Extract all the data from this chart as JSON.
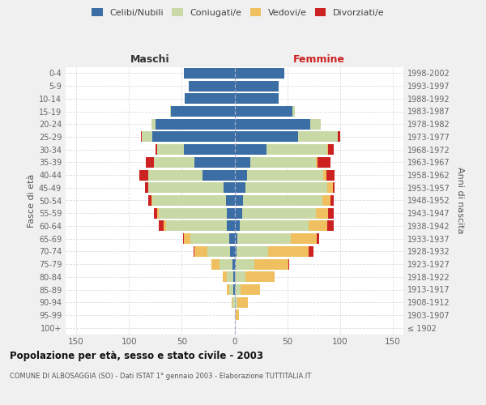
{
  "age_groups": [
    "100+",
    "95-99",
    "90-94",
    "85-89",
    "80-84",
    "75-79",
    "70-74",
    "65-69",
    "60-64",
    "55-59",
    "50-54",
    "45-49",
    "40-44",
    "35-39",
    "30-34",
    "25-29",
    "20-24",
    "15-19",
    "10-14",
    "5-9",
    "0-4"
  ],
  "birth_years": [
    "≤ 1902",
    "1903-1907",
    "1908-1912",
    "1913-1917",
    "1918-1922",
    "1923-1927",
    "1928-1932",
    "1933-1937",
    "1938-1942",
    "1943-1947",
    "1948-1952",
    "1953-1957",
    "1958-1962",
    "1963-1967",
    "1968-1972",
    "1973-1977",
    "1978-1982",
    "1983-1987",
    "1988-1992",
    "1993-1997",
    "1998-2002"
  ],
  "maschi": {
    "celibi": [
      0,
      0,
      0,
      1,
      1,
      2,
      4,
      5,
      7,
      7,
      8,
      10,
      30,
      38,
      48,
      78,
      75,
      60,
      47,
      43,
      48
    ],
    "coniugati": [
      0,
      0,
      2,
      4,
      6,
      12,
      22,
      37,
      58,
      65,
      70,
      72,
      52,
      38,
      25,
      10,
      4,
      1,
      0,
      0,
      0
    ],
    "vedovi": [
      0,
      0,
      1,
      2,
      4,
      8,
      12,
      6,
      2,
      1,
      1,
      0,
      0,
      0,
      0,
      0,
      0,
      0,
      0,
      0,
      0
    ],
    "divorziati": [
      0,
      0,
      0,
      0,
      0,
      0,
      1,
      1,
      5,
      3,
      3,
      3,
      8,
      8,
      2,
      1,
      0,
      0,
      0,
      0,
      0
    ]
  },
  "femmine": {
    "nubili": [
      0,
      0,
      0,
      0,
      0,
      1,
      2,
      3,
      5,
      7,
      8,
      10,
      12,
      15,
      30,
      60,
      72,
      55,
      42,
      42,
      47
    ],
    "coniugate": [
      0,
      1,
      3,
      6,
      10,
      18,
      30,
      50,
      65,
      70,
      75,
      78,
      72,
      62,
      58,
      38,
      10,
      2,
      0,
      0,
      0
    ],
    "vedove": [
      0,
      3,
      10,
      18,
      28,
      32,
      38,
      25,
      18,
      12,
      8,
      5,
      3,
      2,
      1,
      0,
      0,
      0,
      0,
      0,
      0
    ],
    "divorziate": [
      0,
      0,
      0,
      0,
      0,
      1,
      5,
      2,
      6,
      5,
      3,
      2,
      8,
      12,
      5,
      2,
      0,
      0,
      0,
      0,
      0
    ]
  },
  "colors": {
    "celibi_nubili": "#3a6ea5",
    "coniugati": "#c8d9a5",
    "vedovi": "#f0c060",
    "divorziati": "#cc2222"
  },
  "xlim": 160,
  "xticks": [
    -150,
    -100,
    -50,
    0,
    50,
    100,
    150
  ],
  "title": "Popolazione per età, sesso e stato civile - 2003",
  "subtitle": "COMUNE DI ALBOSAGGIA (SO) - Dati ISTAT 1° gennaio 2003 - Elaborazione TUTTITALIA.IT",
  "ylabel_left": "Fasce di età",
  "ylabel_right": "Anni di nascita",
  "xlabel_maschi": "Maschi",
  "xlabel_femmine": "Femmine",
  "bg_color": "#f0f0f0",
  "plot_bg": "#ffffff",
  "grid_color": "#dddddd",
  "tick_color": "#666666"
}
